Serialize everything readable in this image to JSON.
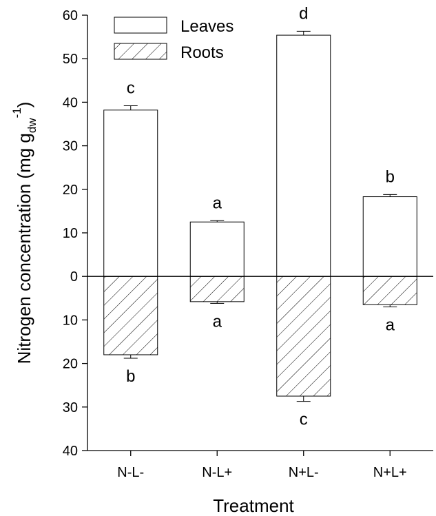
{
  "chart_data": {
    "type": "bar",
    "xlabel": "Treatment",
    "ylabel": {
      "main": "Nitrogen concentration (mg g",
      "subscript": "dw",
      "superscript": "-1",
      "close": ")"
    },
    "categories": [
      "N-L-",
      "N-L+",
      "N+L-",
      "N+L+"
    ],
    "ylim": [
      -40,
      60
    ],
    "yticks": [
      -40,
      -30,
      -20,
      -10,
      0,
      10,
      20,
      30,
      40,
      50,
      60
    ],
    "ytick_labels": [
      "40",
      "30",
      "20",
      "10",
      "0",
      "10",
      "20",
      "30",
      "40",
      "50",
      "60"
    ],
    "series": [
      {
        "name": "Leaves",
        "fill": "white",
        "values": [
          38.2,
          12.5,
          55.4,
          18.3
        ],
        "errors": [
          1.0,
          0.3,
          0.9,
          0.5
        ],
        "letters": [
          "c",
          "a",
          "d",
          "b"
        ]
      },
      {
        "name": "Roots",
        "fill": "hatched",
        "values": [
          -18.0,
          -5.8,
          -27.5,
          -6.5
        ],
        "errors": [
          0.8,
          0.4,
          1.2,
          0.5
        ],
        "letters": [
          "b",
          "a",
          "c",
          "a"
        ]
      }
    ],
    "legend_position": "top-left",
    "grid": false,
    "colors": {
      "bar_edge": "#000000",
      "bar_fill": "#ffffff",
      "hatch": "#000000"
    }
  }
}
